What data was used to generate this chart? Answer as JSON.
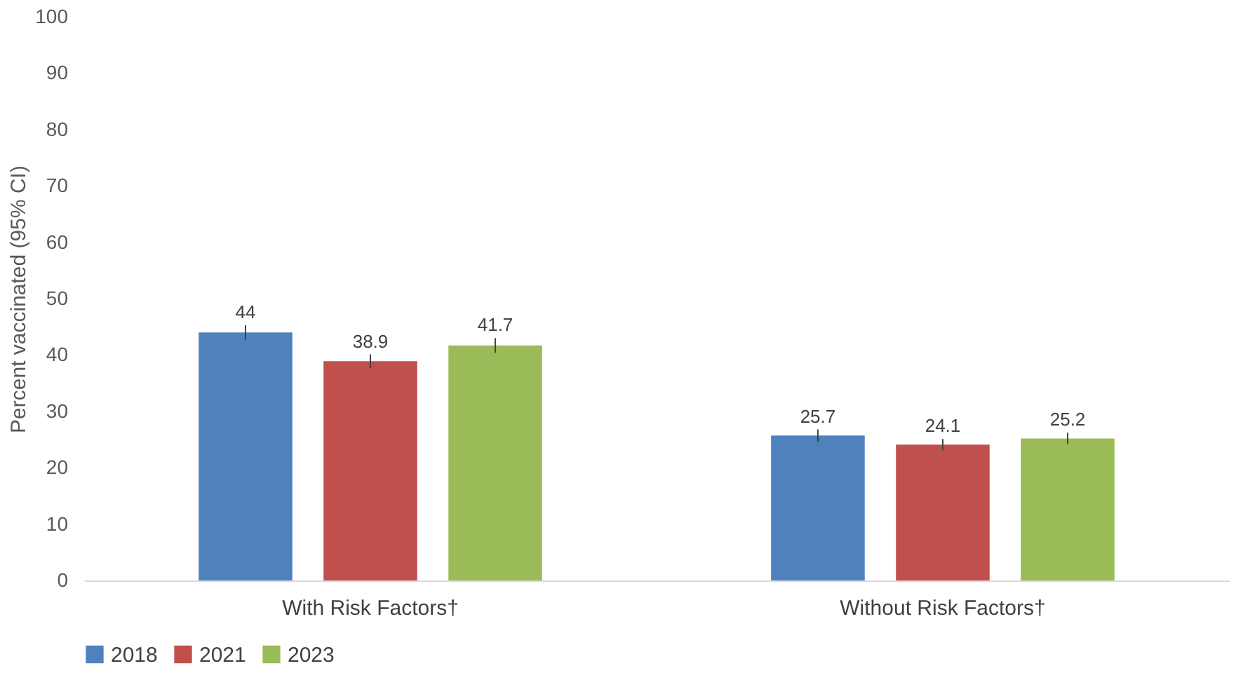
{
  "chart_data": {
    "type": "bar",
    "ylabel": "Percent vaccinated (95% CI)",
    "categories": [
      "With Risk Factors†",
      "Without Risk Factors†"
    ],
    "series": [
      {
        "name": "2018",
        "color": "#4f81bd",
        "values": [
          44,
          25.7
        ],
        "errors": [
          1.3,
          1.1
        ]
      },
      {
        "name": "2021",
        "color": "#c0504d",
        "values": [
          38.9,
          24.1
        ],
        "errors": [
          1.2,
          1.0
        ]
      },
      {
        "name": "2023",
        "color": "#9bbb59",
        "values": [
          41.7,
          25.2
        ],
        "errors": [
          1.3,
          1.0
        ]
      }
    ],
    "ylim": [
      0,
      100
    ],
    "yticks": [
      0,
      10,
      20,
      30,
      40,
      50,
      60,
      70,
      80,
      90,
      100
    ],
    "grid": false,
    "legend": "bottom",
    "data_labels": true
  }
}
